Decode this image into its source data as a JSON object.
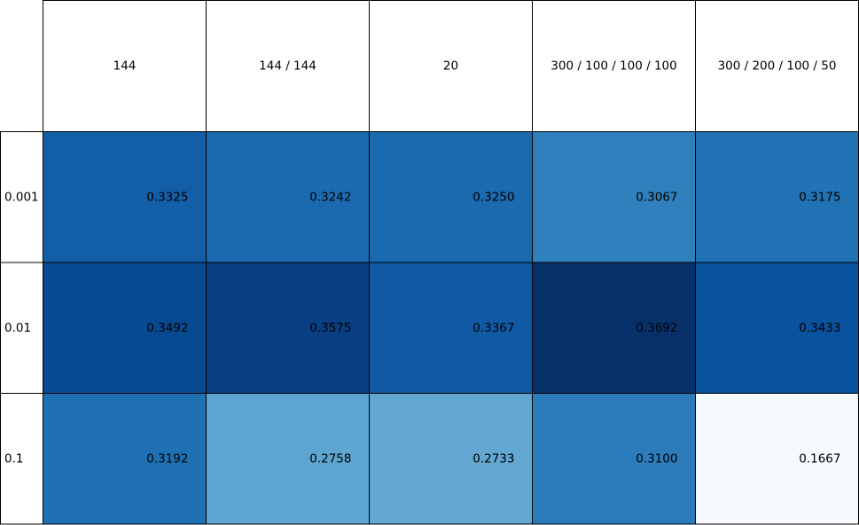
{
  "chart_data": {
    "type": "heatmap",
    "title": "",
    "xlabel": "",
    "ylabel": "",
    "colormap": "Blues",
    "columns": [
      "144",
      "144 / 144",
      "20",
      "300 / 100 / 100 / 100",
      "300 / 200 / 100 / 50"
    ],
    "rows": [
      "0.001",
      "0.01",
      "0.1"
    ],
    "values": [
      [
        0.3325,
        0.3242,
        0.325,
        0.3067,
        0.3175
      ],
      [
        0.3492,
        0.3575,
        0.3367,
        0.3692,
        0.3433
      ],
      [
        0.3192,
        0.2758,
        0.2733,
        0.31,
        0.1667
      ]
    ],
    "cell_labels": [
      [
        "0.3325",
        "0.3242",
        "0.3250",
        "0.3067",
        "0.3175"
      ],
      [
        "0.3492",
        "0.3575",
        "0.3367",
        "0.3692",
        "0.3433"
      ],
      [
        "0.3192",
        "0.2758",
        "0.2733",
        "0.3100",
        "0.1667"
      ]
    ],
    "color_range": [
      0.1667,
      0.3692
    ],
    "grid": true,
    "legend": "none"
  }
}
